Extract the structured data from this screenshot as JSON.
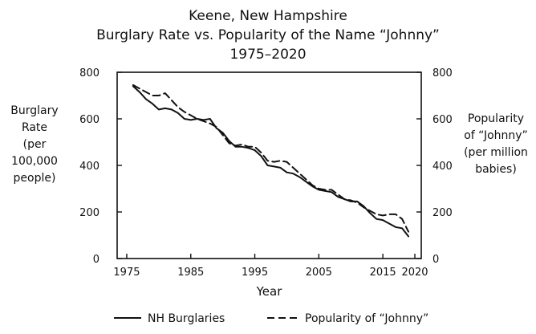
{
  "chart_data": {
    "type": "line",
    "title_lines": [
      "Keene, New Hampshire",
      "Burglary Rate vs. Popularity of the Name “Johnny”",
      "1975–2020"
    ],
    "xlabel": "Year",
    "ylabel_left_lines": [
      "Burglary",
      "Rate",
      "(per 100,000",
      "people)"
    ],
    "ylabel_right_lines": [
      "Popularity",
      "of “Johnny”",
      "(per million",
      "babies)"
    ],
    "xlim": [
      1975,
      2020
    ],
    "ylim_left": [
      0,
      800
    ],
    "ylim_right": [
      0,
      800
    ],
    "xticks": [
      "1975",
      "1985",
      "1995",
      "2005",
      "2015",
      "2020"
    ],
    "xtick_values": [
      1975,
      1985,
      1995,
      2005,
      2015,
      2020
    ],
    "yticks_left": [
      "0",
      "200",
      "400",
      "600",
      "800"
    ],
    "yticks_right": [
      "0",
      "200",
      "400",
      "600",
      "800"
    ],
    "ytick_values": [
      0,
      200,
      400,
      600,
      800
    ],
    "grid": false,
    "legend_position": "bottom",
    "series": [
      {
        "name": "NH Burglaries",
        "style": "solid",
        "color": "#111111",
        "x": [
          1976,
          1977,
          1978,
          1979,
          1980,
          1981,
          1982,
          1983,
          1984,
          1985,
          1986,
          1987,
          1988,
          1989,
          1990,
          1991,
          1992,
          1993,
          1994,
          1995,
          1996,
          1997,
          1998,
          1999,
          2000,
          2001,
          2002,
          2003,
          2004,
          2005,
          2006,
          2007,
          2008,
          2009,
          2010,
          2011,
          2012,
          2013,
          2014,
          2015,
          2016,
          2017,
          2018,
          2019
        ],
        "y": [
          740,
          715,
          685,
          665,
          640,
          645,
          640,
          625,
          600,
          595,
          600,
          595,
          600,
          560,
          540,
          505,
          480,
          480,
          475,
          465,
          440,
          400,
          395,
          390,
          370,
          365,
          350,
          330,
          310,
          295,
          290,
          285,
          265,
          255,
          245,
          245,
          225,
          195,
          170,
          165,
          150,
          135,
          130,
          95
        ]
      },
      {
        "name": "Popularity of “Johnny”",
        "style": "dashed",
        "color": "#111111",
        "x": [
          1976,
          1977,
          1978,
          1979,
          1980,
          1981,
          1982,
          1983,
          1984,
          1985,
          1986,
          1987,
          1988,
          1989,
          1990,
          1991,
          1992,
          1993,
          1994,
          1995,
          1996,
          1997,
          1998,
          1999,
          2000,
          2001,
          2002,
          2003,
          2004,
          2005,
          2006,
          2007,
          2008,
          2009,
          2010,
          2011,
          2012,
          2013,
          2014,
          2015,
          2016,
          2017,
          2018,
          2019
        ],
        "y": [
          745,
          730,
          715,
          700,
          700,
          710,
          680,
          650,
          630,
          615,
          600,
          590,
          580,
          565,
          530,
          495,
          485,
          490,
          480,
          480,
          455,
          420,
          415,
          420,
          415,
          390,
          365,
          340,
          315,
          300,
          295,
          295,
          275,
          255,
          250,
          240,
          220,
          205,
          190,
          185,
          190,
          190,
          170,
          115
        ]
      }
    ]
  }
}
